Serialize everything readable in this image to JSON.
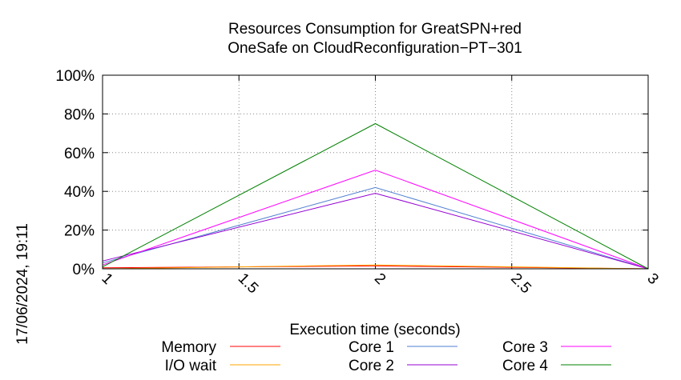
{
  "chart_data": {
    "type": "line",
    "title": "Resources Consumption for GreatSPN+red",
    "subtitle": "OneSafe on CloudReconfiguration−PT−301",
    "xlabel": "Execution time (seconds)",
    "ylabel": "",
    "side_label": "17/06/2024, 19:11",
    "xlim": [
      1,
      3
    ],
    "ylim": [
      0,
      100
    ],
    "x_ticks": [
      "1",
      "1.5",
      "2",
      "2.5",
      "3"
    ],
    "y_ticks": [
      "0%",
      "20%",
      "40%",
      "60%",
      "80%",
      "100%"
    ],
    "grid": true,
    "legend_position": "bottom",
    "series": [
      {
        "name": "Memory",
        "color": "#ff0000",
        "x": [
          1,
          2,
          3
        ],
        "y": [
          0.5,
          1.5,
          0
        ]
      },
      {
        "name": "I/O wait",
        "color": "#ffa500",
        "x": [
          1,
          2,
          3
        ],
        "y": [
          0,
          2,
          0
        ]
      },
      {
        "name": "Core 1",
        "color": "#4f7fd0",
        "x": [
          1,
          2,
          3
        ],
        "y": [
          3,
          42,
          0
        ]
      },
      {
        "name": "Core 2",
        "color": "#9400d3",
        "x": [
          1,
          2,
          3
        ],
        "y": [
          4,
          39,
          0
        ]
      },
      {
        "name": "Core 3",
        "color": "#ff00ff",
        "x": [
          1,
          2,
          3
        ],
        "y": [
          2,
          51,
          0
        ]
      },
      {
        "name": "Core 4",
        "color": "#008000",
        "x": [
          1,
          2,
          3
        ],
        "y": [
          1,
          75,
          0
        ]
      }
    ]
  }
}
